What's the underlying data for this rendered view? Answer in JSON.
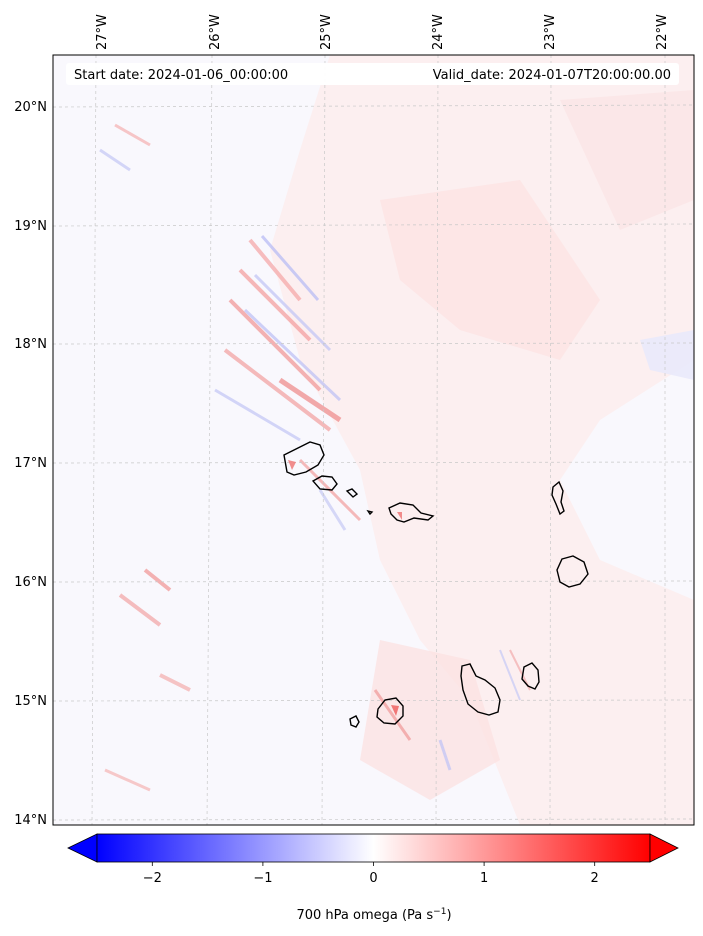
{
  "map": {
    "start_label": "Start date: 2024-01-06_00:00:00",
    "valid_label": "Valid_date: 2024-01-07T20:00:00.00",
    "lon_ticks": [
      "27°W",
      "26°W",
      "25°W",
      "24°W",
      "23°W",
      "22°W"
    ],
    "lat_ticks": [
      "20°N",
      "19°N",
      "18°N",
      "17°N",
      "16°N",
      "15°N",
      "14°N"
    ],
    "islands": [
      "Santo Antão",
      "São Vicente",
      "Santa Luzia",
      "Branco",
      "São Nicolau",
      "Sal",
      "Boa Vista",
      "Brava",
      "Fogo",
      "Santiago",
      "Maio"
    ],
    "colors": {
      "positive": "#ff0000",
      "negative": "#0000ff",
      "neutral": "#ffffff",
      "coastline": "#000000"
    }
  },
  "colorbar": {
    "ticks": [
      "−2",
      "−1",
      "0",
      "1",
      "2"
    ],
    "tick_values": [
      -2,
      -1,
      0,
      1,
      2
    ],
    "range": [
      -2.5,
      2.5
    ],
    "label_main": "700 hPa omega (Pa s",
    "label_exp": "−1",
    "label_tail": ")"
  }
}
